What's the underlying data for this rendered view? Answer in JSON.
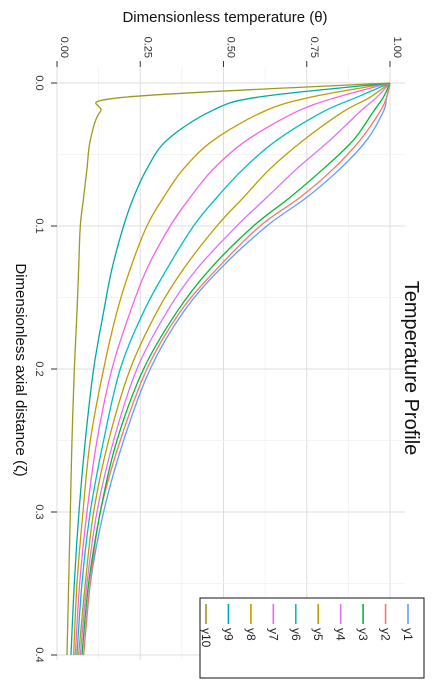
{
  "chart_data": {
    "type": "line",
    "title": "Temperature Profile",
    "xlabel": "Dimensionless axial distance (ζ)",
    "ylabel": "Dimensionless temperature (θ)",
    "xlim": [
      0,
      0.4
    ],
    "ylim": [
      0,
      1
    ],
    "x_ticks": [
      "0.0",
      "0.1",
      "0.2",
      "0.3",
      "0.4"
    ],
    "y_ticks": [
      "0.00",
      "0.25",
      "0.50",
      "0.75",
      "1.00"
    ],
    "grid": true,
    "legend_position": "bottom-right",
    "x": [
      0,
      0.01,
      0.02,
      0.04,
      0.06,
      0.08,
      0.1,
      0.13,
      0.16,
      0.2,
      0.25,
      0.3,
      0.35,
      0.4
    ],
    "series": [
      {
        "name": "y1",
        "color": "#619CFF",
        "values": [
          1.0,
          0.99,
          0.98,
          0.93,
          0.85,
          0.75,
          0.63,
          0.49,
          0.38,
          0.28,
          0.2,
          0.14,
          0.1,
          0.08
        ]
      },
      {
        "name": "y2",
        "color": "#F8766D",
        "values": [
          1.0,
          0.99,
          0.97,
          0.91,
          0.83,
          0.73,
          0.61,
          0.48,
          0.37,
          0.27,
          0.19,
          0.13,
          0.1,
          0.08
        ]
      },
      {
        "name": "y3",
        "color": "#00BA38",
        "values": [
          1.0,
          0.98,
          0.95,
          0.89,
          0.8,
          0.7,
          0.59,
          0.46,
          0.36,
          0.26,
          0.18,
          0.13,
          0.095,
          0.075
        ]
      },
      {
        "name": "y4",
        "color": "#DB72FB",
        "values": [
          1.0,
          0.96,
          0.91,
          0.82,
          0.72,
          0.63,
          0.54,
          0.42,
          0.33,
          0.24,
          0.17,
          0.12,
          0.09,
          0.07
        ]
      },
      {
        "name": "y5",
        "color": "#B79F00",
        "values": [
          1.0,
          0.94,
          0.86,
          0.74,
          0.64,
          0.56,
          0.48,
          0.38,
          0.3,
          0.22,
          0.155,
          0.11,
          0.085,
          0.065
        ]
      },
      {
        "name": "y6",
        "color": "#00BFC4",
        "values": [
          1.0,
          0.9,
          0.8,
          0.66,
          0.56,
          0.48,
          0.41,
          0.33,
          0.26,
          0.19,
          0.14,
          0.1,
          0.075,
          0.06
        ]
      },
      {
        "name": "y7",
        "color": "#F564E3",
        "values": [
          1.0,
          0.84,
          0.72,
          0.57,
          0.47,
          0.4,
          0.34,
          0.27,
          0.22,
          0.165,
          0.12,
          0.09,
          0.068,
          0.055
        ]
      },
      {
        "name": "y8",
        "color": "#C49A00",
        "values": [
          1.0,
          0.76,
          0.62,
          0.47,
          0.38,
          0.32,
          0.27,
          0.22,
          0.18,
          0.14,
          0.1,
          0.078,
          0.06,
          0.05
        ]
      },
      {
        "name": "y9",
        "color": "#00A9A9",
        "values": [
          1.0,
          0.6,
          0.46,
          0.33,
          0.27,
          0.23,
          0.2,
          0.165,
          0.14,
          0.11,
          0.085,
          0.066,
          0.052,
          0.042
        ]
      },
      {
        "name": "y10",
        "color": "#9A9A1F",
        "values": [
          1.0,
          0.2,
          0.13,
          0.1,
          0.09,
          0.08,
          0.07,
          0.065,
          0.06,
          0.052,
          0.045,
          0.04,
          0.035,
          0.03
        ]
      }
    ]
  }
}
